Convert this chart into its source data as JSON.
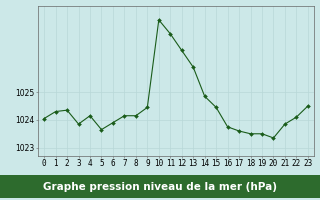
{
  "x": [
    0,
    1,
    2,
    3,
    4,
    5,
    6,
    7,
    8,
    9,
    10,
    11,
    12,
    13,
    14,
    15,
    16,
    17,
    18,
    19,
    20,
    21,
    22,
    23
  ],
  "y": [
    1024.05,
    1024.3,
    1024.35,
    1023.85,
    1024.15,
    1023.65,
    1023.9,
    1024.15,
    1024.15,
    1024.45,
    1027.6,
    1027.1,
    1026.5,
    1025.9,
    1024.85,
    1024.45,
    1023.75,
    1023.6,
    1023.5,
    1023.5,
    1023.35,
    1023.85,
    1024.1,
    1024.5
  ],
  "line_color": "#1a5c1a",
  "marker": "D",
  "marker_size": 2.0,
  "background_color": "#cce8e8",
  "grid_color": "#b8d8d8",
  "axis_bg": "#cce8e8",
  "xlabel": "Graphe pression niveau de la mer (hPa)",
  "xlabel_fontsize": 7.5,
  "tick_fontsize": 5.5,
  "yticks": [
    1023,
    1024,
    1025
  ],
  "ylim": [
    1022.7,
    1028.1
  ],
  "xlim": [
    -0.5,
    23.5
  ],
  "xticks": [
    0,
    1,
    2,
    3,
    4,
    5,
    6,
    7,
    8,
    9,
    10,
    11,
    12,
    13,
    14,
    15,
    16,
    17,
    18,
    19,
    20,
    21,
    22,
    23
  ],
  "xtick_labels": [
    "0",
    "1",
    "2",
    "3",
    "4",
    "5",
    "6",
    "7",
    "8",
    "9",
    "10",
    "11",
    "12",
    "13",
    "14",
    "15",
    "16",
    "17",
    "18",
    "19",
    "20",
    "21",
    "22",
    "23"
  ],
  "spine_color": "#666666",
  "bottom_bar_color": "#2d6b2d",
  "label_text_color": "#1a5c1a"
}
